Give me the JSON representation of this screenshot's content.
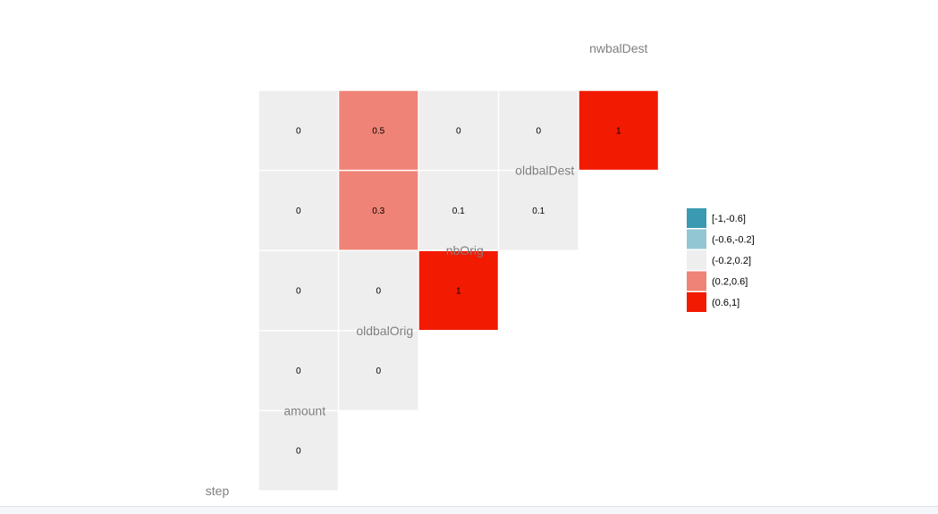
{
  "chart_data": {
    "type": "heatmap",
    "variables": [
      "step",
      "amount",
      "oldbalOrig",
      "nbOrig",
      "oldbalDest",
      "nwbalDest"
    ],
    "cells": [
      {
        "row": "amount",
        "col": "step",
        "value": 0
      },
      {
        "row": "oldbalOrig",
        "col": "step",
        "value": 0
      },
      {
        "row": "oldbalOrig",
        "col": "amount",
        "value": 0
      },
      {
        "row": "nbOrig",
        "col": "step",
        "value": 0
      },
      {
        "row": "nbOrig",
        "col": "amount",
        "value": 0
      },
      {
        "row": "nbOrig",
        "col": "oldbalOrig",
        "value": 1
      },
      {
        "row": "oldbalDest",
        "col": "step",
        "value": 0
      },
      {
        "row": "oldbalDest",
        "col": "amount",
        "value": 0.3
      },
      {
        "row": "oldbalDest",
        "col": "oldbalOrig",
        "value": 0.1
      },
      {
        "row": "oldbalDest",
        "col": "nbOrig",
        "value": 0.1
      },
      {
        "row": "nwbalDest",
        "col": "step",
        "value": 0
      },
      {
        "row": "nwbalDest",
        "col": "amount",
        "value": 0.5
      },
      {
        "row": "nwbalDest",
        "col": "oldbalOrig",
        "value": 0
      },
      {
        "row": "nwbalDest",
        "col": "nbOrig",
        "value": 0
      },
      {
        "row": "nwbalDest",
        "col": "oldbalDest",
        "value": 1
      }
    ],
    "legend": {
      "position": "right",
      "bins": [
        {
          "label": "[-1,-0.6]",
          "color": "#3a9ab2"
        },
        {
          "label": "(-0.6,-0.2]",
          "color": "#93c6d3"
        },
        {
          "label": "(-0.2,0.2]",
          "color": "#eeeeee"
        },
        {
          "label": "(0.2,0.6]",
          "color": "#f08377"
        },
        {
          "label": "(0.6,1]",
          "color": "#f21a00"
        }
      ]
    },
    "grid": false
  }
}
